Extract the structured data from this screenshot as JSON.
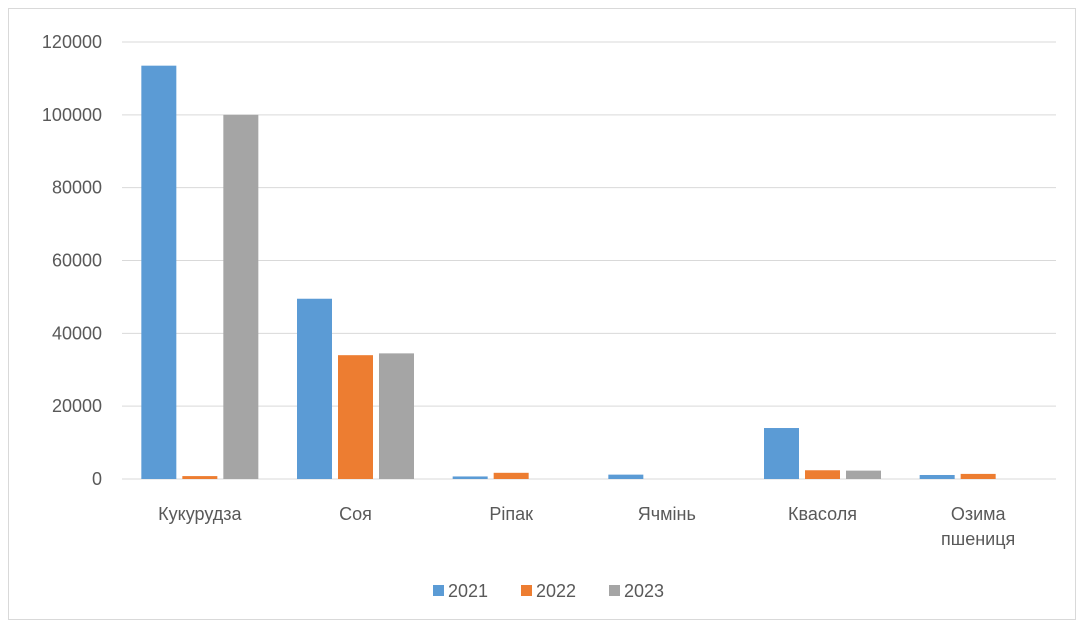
{
  "chart_data": {
    "type": "bar",
    "title": "",
    "xlabel": "",
    "ylabel": "",
    "ylim": [
      0,
      120000
    ],
    "yticks": [
      0,
      20000,
      40000,
      60000,
      80000,
      100000,
      120000
    ],
    "grid": true,
    "legend_position": "bottom",
    "categories": [
      [
        "Кукурудза"
      ],
      [
        "Соя"
      ],
      [
        "Ріпак"
      ],
      [
        "Ячмінь"
      ],
      [
        "Квасоля"
      ],
      [
        "Озима",
        "пшениця"
      ]
    ],
    "series": [
      {
        "name": "2021",
        "color": "#5b9bd5",
        "values": [
          113500,
          49500,
          700,
          1200,
          14000,
          1100
        ]
      },
      {
        "name": "2022",
        "color": "#ed7d31",
        "values": [
          800,
          34000,
          1700,
          0,
          2400,
          1400
        ]
      },
      {
        "name": "2023",
        "color": "#a5a5a5",
        "values": [
          100000,
          34500,
          0,
          0,
          2300,
          0
        ]
      }
    ]
  }
}
